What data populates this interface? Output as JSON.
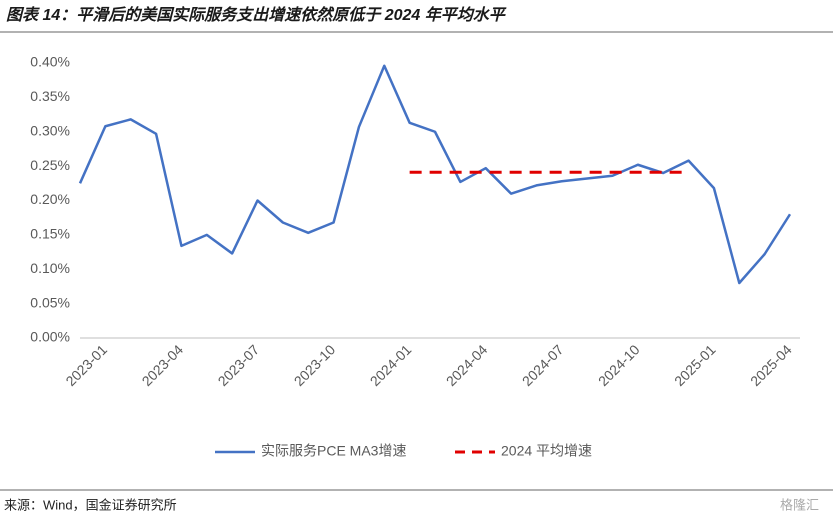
{
  "title": "图表 14：平滑后的美国实际服务支出增速依然原低于 2024 年平均水平",
  "source": "来源：Wind，国金证券研究所",
  "watermark": "格隆汇",
  "chart_data": {
    "type": "line",
    "categories": [
      null,
      "2023-01",
      null,
      null,
      "2023-04",
      null,
      null,
      "2023-07",
      null,
      null,
      "2023-10",
      null,
      null,
      "2024-01",
      null,
      null,
      "2024-04",
      null,
      null,
      "2024-07",
      null,
      null,
      "2024-10",
      null,
      null,
      "2025-01",
      null,
      null,
      "2025-04"
    ],
    "series": [
      {
        "name": "实际服务PCE MA3增速",
        "color": "#4472c4",
        "dash": false,
        "values": [
          0.225,
          0.308,
          0.318,
          0.297,
          0.134,
          0.15,
          0.123,
          0.2,
          0.168,
          0.153,
          0.168,
          0.307,
          0.396,
          0.313,
          0.3,
          0.227,
          0.247,
          0.21,
          0.222,
          0.228,
          0.232,
          0.236,
          0.252,
          0.24,
          0.258,
          0.218,
          0.08,
          0.122,
          0.18
        ]
      },
      {
        "name": "2024 平均增速",
        "color": "#e00000",
        "dash": true,
        "values": [
          null,
          null,
          null,
          null,
          null,
          null,
          null,
          null,
          null,
          null,
          null,
          null,
          null,
          0.241,
          0.241,
          0.241,
          0.241,
          0.241,
          0.241,
          0.241,
          0.241,
          0.241,
          0.241,
          0.241,
          0.241,
          null,
          null,
          null,
          null
        ]
      }
    ],
    "ylim": [
      0,
      0.4
    ],
    "yticks": [
      {
        "value": 0,
        "label": "0.00%"
      },
      {
        "value": 0.05,
        "label": "0.05%"
      },
      {
        "value": 0.1,
        "label": "0.10%"
      },
      {
        "value": 0.15,
        "label": "0.15%"
      },
      {
        "value": 0.2,
        "label": "0.20%"
      },
      {
        "value": 0.25,
        "label": "0.25%"
      },
      {
        "value": 0.3,
        "label": "0.30%"
      },
      {
        "value": 0.35,
        "label": "0.35%"
      },
      {
        "value": 0.4,
        "label": "0.40%"
      }
    ],
    "grid": false,
    "legend": "bottom"
  }
}
